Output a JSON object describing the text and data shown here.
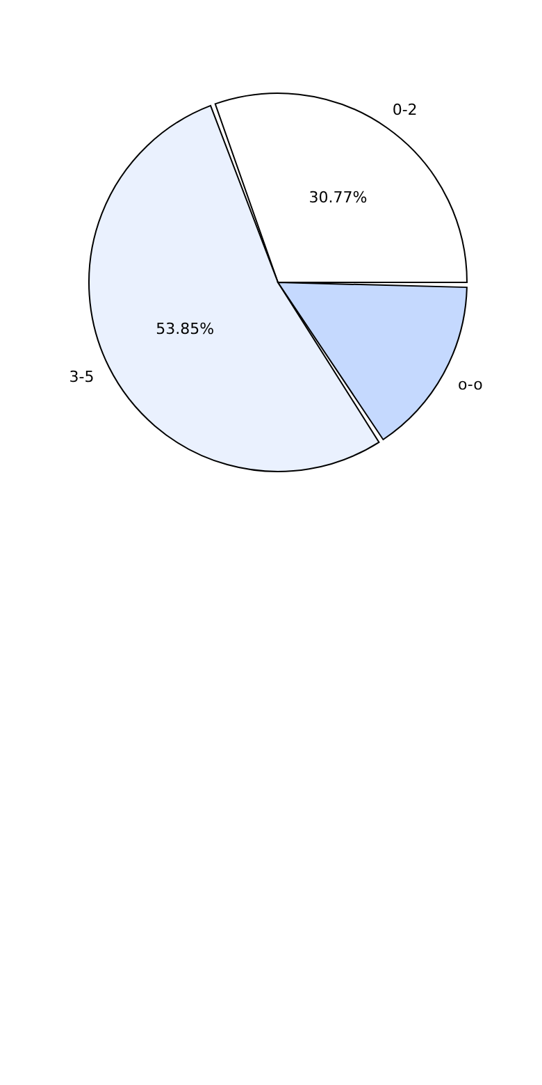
{
  "chart_data": {
    "type": "pie",
    "categories": [
      "0-2",
      "3-5",
      "o-o"
    ],
    "values": [
      30.77,
      53.85,
      15.38
    ],
    "colors": [
      "#ffffff",
      "#eaf1fe",
      "#c5d9fe"
    ],
    "value_labels": [
      "30.77%",
      "53.85%",
      null
    ],
    "legend": false
  }
}
